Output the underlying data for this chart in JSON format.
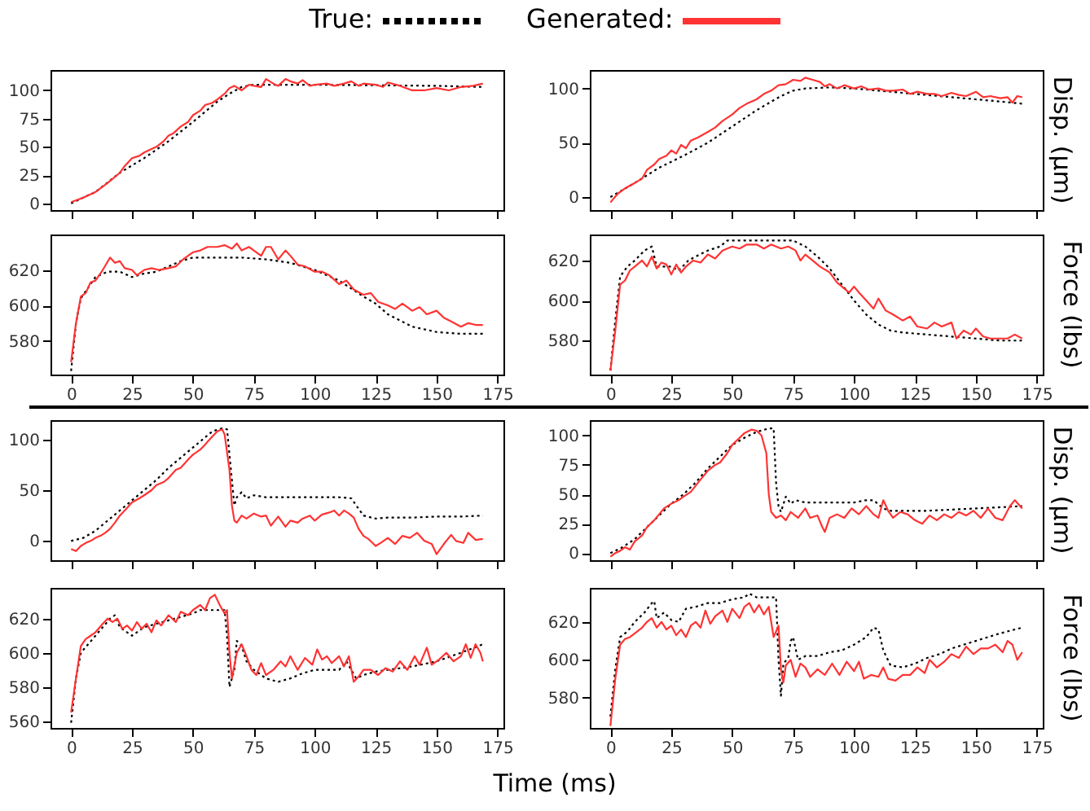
{
  "chart_data": [
    {
      "type": "line",
      "legend": "top",
      "tick_labels": "y",
      "xlim": [
        -8.45,
        177.45
      ],
      "xticks": [
        0,
        25,
        50,
        75,
        100,
        125,
        150,
        175
      ],
      "ylim": [
        -6,
        118
      ],
      "yticks": [
        0,
        25,
        50,
        75,
        100
      ],
      "series": [
        {
          "name": "True:",
          "color": "#000000",
          "line_style": "dotted",
          "x": [
            0,
            10,
            20,
            30,
            40,
            50,
            60,
            65,
            70,
            75,
            100,
            150,
            169
          ],
          "values": [
            0,
            10,
            27,
            40,
            55,
            72,
            90,
            97,
            103,
            105,
            105,
            104,
            103
          ]
        },
        {
          "name": "Generated:",
          "color": "#ff3333",
          "line_style": "solid",
          "x": [
            0,
            5,
            10,
            15,
            20,
            22,
            25,
            28,
            30,
            33,
            35,
            38,
            40,
            42,
            45,
            48,
            50,
            53,
            55,
            58,
            60,
            63,
            65,
            67,
            70,
            73,
            75,
            78,
            80,
            83,
            85,
            88,
            90,
            93,
            95,
            98,
            100,
            105,
            108,
            112,
            115,
            118,
            120,
            125,
            128,
            130,
            135,
            140,
            145,
            150,
            155,
            160,
            165,
            169
          ],
          "values": [
            1,
            5,
            10,
            18,
            27,
            33,
            40,
            42,
            45,
            48,
            50,
            55,
            60,
            62,
            68,
            72,
            78,
            82,
            87,
            89,
            92,
            97,
            102,
            104,
            100,
            105,
            104,
            103,
            110,
            106,
            104,
            110,
            108,
            106,
            109,
            104,
            105,
            106,
            104,
            106,
            108,
            104,
            106,
            105,
            103,
            107,
            104,
            100,
            100,
            102,
            100,
            103,
            104,
            106
          ]
        }
      ]
    },
    {
      "type": "line",
      "tick_labels": "y",
      "ylabel": "Disp. (μm)",
      "xlim": [
        -8.45,
        177.45
      ],
      "xticks": [
        0,
        25,
        50,
        75,
        100,
        125,
        150,
        175
      ],
      "ylim": [
        -12,
        117
      ],
      "yticks": [
        0,
        50,
        100
      ],
      "series": [
        {
          "color": "#000000",
          "line_style": "dotted",
          "x": [
            0,
            10,
            20,
            30,
            40,
            50,
            60,
            70,
            75,
            80,
            90,
            100,
            110,
            120,
            130,
            140,
            150,
            160,
            169
          ],
          "values": [
            0,
            13,
            27,
            38,
            50,
            65,
            80,
            93,
            98,
            100,
            101,
            100,
            98,
            96,
            94,
            92,
            90,
            88,
            86
          ]
        },
        {
          "color": "#ff3333",
          "line_style": "solid",
          "x": [
            0,
            3,
            6,
            10,
            13,
            15,
            18,
            20,
            23,
            25,
            27,
            29,
            31,
            33,
            36,
            40,
            43,
            46,
            50,
            53,
            56,
            60,
            63,
            66,
            69,
            72,
            75,
            78,
            80,
            83,
            86,
            88,
            90,
            93,
            96,
            100,
            103,
            106,
            110,
            113,
            116,
            120,
            123,
            126,
            130,
            133,
            136,
            140,
            143,
            146,
            150,
            153,
            156,
            160,
            163,
            165,
            167,
            169
          ],
          "values": [
            -5,
            3,
            8,
            13,
            17,
            25,
            30,
            35,
            38,
            43,
            40,
            48,
            45,
            52,
            55,
            60,
            64,
            70,
            76,
            82,
            86,
            90,
            95,
            98,
            103,
            104,
            108,
            107,
            110,
            108,
            106,
            102,
            104,
            100,
            103,
            100,
            102,
            99,
            100,
            98,
            98,
            99,
            95,
            97,
            95,
            95,
            93,
            96,
            94,
            93,
            97,
            92,
            93,
            91,
            92,
            87,
            93,
            92
          ]
        }
      ]
    },
    {
      "type": "line",
      "xlim": [
        -8.45,
        177.45
      ],
      "xticks": [
        0,
        25,
        50,
        75,
        100,
        125,
        150,
        175
      ],
      "ylim": [
        561,
        640
      ],
      "yticks": [
        580,
        600,
        620
      ],
      "series": [
        {
          "color": "#000000",
          "line_style": "dotted",
          "x": [
            0,
            2,
            4,
            7,
            10,
            15,
            20,
            25,
            30,
            35,
            40,
            45,
            50,
            60,
            70,
            80,
            90,
            100,
            110,
            120,
            125,
            130,
            140,
            150,
            160,
            169
          ],
          "values": [
            563,
            590,
            604,
            610,
            616,
            619,
            619,
            616,
            618,
            619,
            622,
            625,
            627,
            627,
            627,
            626,
            624,
            620,
            614,
            605,
            601,
            595,
            588,
            585,
            584,
            584
          ]
        },
        {
          "color": "#ff3333",
          "line_style": "solid",
          "x": [
            0,
            2,
            4,
            6,
            8,
            10,
            13,
            16,
            18,
            20,
            22,
            25,
            27,
            30,
            33,
            36,
            40,
            43,
            46,
            50,
            53,
            56,
            60,
            63,
            66,
            68,
            70,
            73,
            75,
            78,
            80,
            82,
            85,
            88,
            90,
            93,
            96,
            100,
            103,
            106,
            110,
            113,
            116,
            120,
            123,
            126,
            130,
            133,
            136,
            140,
            143,
            146,
            150,
            153,
            156,
            160,
            163,
            166,
            169
          ],
          "values": [
            568,
            590,
            605,
            607,
            613,
            614,
            620,
            627,
            624,
            625,
            621,
            620,
            617,
            620,
            621,
            620,
            621,
            622,
            626,
            630,
            631,
            633,
            633,
            634,
            632,
            635,
            631,
            633,
            631,
            628,
            633,
            633,
            626,
            631,
            628,
            623,
            622,
            619,
            619,
            617,
            612,
            614,
            609,
            606,
            607,
            602,
            600,
            598,
            601,
            597,
            599,
            595,
            597,
            593,
            591,
            588,
            590,
            589,
            589
          ]
        }
      ]
    },
    {
      "type": "line",
      "ylabel": "Force (lbs)",
      "xlim": [
        -8.45,
        177.45
      ],
      "xticks": [
        0,
        25,
        50,
        75,
        100,
        125,
        150,
        175
      ],
      "ylim": [
        563,
        633
      ],
      "yticks": [
        580,
        600,
        620
      ],
      "series": [
        {
          "color": "#000000",
          "line_style": "dotted",
          "x": [
            0,
            2,
            4,
            7,
            10,
            14,
            17,
            19,
            22,
            25,
            28,
            32,
            35,
            40,
            45,
            48,
            60,
            75,
            80,
            85,
            90,
            95,
            100,
            105,
            110,
            115,
            120,
            130,
            140,
            150,
            160,
            169
          ],
          "values": [
            565,
            590,
            612,
            617,
            620,
            625,
            627,
            617,
            617,
            617,
            615,
            620,
            622,
            625,
            627,
            630,
            630,
            630,
            627,
            622,
            616,
            608,
            600,
            593,
            588,
            585,
            584,
            583,
            582,
            581,
            580,
            580
          ]
        },
        {
          "color": "#ff3333",
          "line_style": "solid",
          "x": [
            0,
            2,
            4,
            6,
            8,
            11,
            13,
            15,
            17,
            19,
            21,
            23,
            25,
            27,
            29,
            31,
            34,
            37,
            40,
            43,
            46,
            50,
            53,
            56,
            60,
            63,
            66,
            70,
            73,
            76,
            78,
            80,
            83,
            86,
            90,
            93,
            96,
            98,
            100,
            102,
            105,
            108,
            110,
            113,
            116,
            120,
            123,
            126,
            130,
            133,
            136,
            140,
            142,
            145,
            148,
            150,
            153,
            156,
            160,
            163,
            166,
            169
          ],
          "values": [
            565,
            585,
            608,
            610,
            615,
            618,
            620,
            617,
            622,
            616,
            619,
            618,
            613,
            618,
            614,
            617,
            620,
            619,
            623,
            621,
            625,
            627,
            626,
            628,
            628,
            626,
            628,
            626,
            627,
            625,
            620,
            623,
            620,
            617,
            614,
            609,
            606,
            604,
            607,
            604,
            600,
            596,
            601,
            595,
            593,
            590,
            592,
            587,
            586,
            589,
            587,
            589,
            581,
            585,
            583,
            586,
            582,
            581,
            581,
            581,
            583,
            581
          ]
        }
      ]
    },
    {
      "type": "line",
      "tick_labels": "y",
      "xlim": [
        -8.45,
        177.45
      ],
      "xticks": [
        0,
        25,
        50,
        75,
        100,
        125,
        150,
        175
      ],
      "ylim": [
        -19,
        119
      ],
      "yticks": [
        0,
        50,
        100
      ],
      "series": [
        {
          "color": "#000000",
          "line_style": "dotted",
          "x": [
            0,
            5,
            10,
            15,
            20,
            25,
            30,
            35,
            40,
            45,
            50,
            55,
            58,
            62,
            64,
            66,
            67,
            68,
            70,
            72,
            75,
            80,
            90,
            100,
            110,
            115,
            117,
            120,
            125,
            130,
            140,
            150,
            160,
            169
          ],
          "values": [
            0,
            3,
            10,
            20,
            30,
            40,
            50,
            60,
            72,
            82,
            92,
            102,
            108,
            111,
            110,
            60,
            35,
            43,
            48,
            42,
            45,
            43,
            43,
            43,
            43,
            42,
            35,
            25,
            22,
            23,
            23,
            24,
            24,
            25
          ]
        },
        {
          "color": "#ff3333",
          "line_style": "solid",
          "x": [
            0,
            2,
            4,
            6,
            8,
            10,
            12,
            14,
            16,
            18,
            20,
            22,
            25,
            28,
            30,
            33,
            35,
            38,
            40,
            43,
            45,
            48,
            50,
            53,
            55,
            58,
            60,
            62,
            63,
            65,
            66,
            67,
            68,
            70,
            72,
            75,
            78,
            80,
            82,
            85,
            88,
            90,
            93,
            95,
            98,
            100,
            103,
            106,
            108,
            110,
            112,
            114,
            116,
            118,
            120,
            122,
            125,
            127,
            130,
            133,
            136,
            139,
            142,
            145,
            148,
            150,
            153,
            156,
            158,
            161,
            163,
            166,
            169
          ],
          "values": [
            -8,
            -10,
            -5,
            -2,
            0,
            3,
            5,
            8,
            12,
            18,
            25,
            30,
            38,
            42,
            45,
            50,
            55,
            58,
            62,
            70,
            72,
            80,
            85,
            90,
            95,
            103,
            108,
            110,
            105,
            70,
            35,
            20,
            18,
            25,
            22,
            27,
            24,
            25,
            15,
            24,
            14,
            20,
            18,
            22,
            25,
            20,
            26,
            28,
            30,
            25,
            30,
            27,
            23,
            12,
            5,
            2,
            -5,
            -2,
            3,
            -3,
            5,
            3,
            8,
            0,
            -3,
            -13,
            -3,
            6,
            0,
            -2,
            8,
            1,
            2
          ]
        }
      ]
    },
    {
      "type": "line",
      "tick_labels": "y",
      "ylabel": "Disp. (μm)",
      "xlim": [
        -8.45,
        177.45
      ],
      "xticks": [
        0,
        25,
        50,
        75,
        100,
        125,
        150,
        175
      ],
      "ylim": [
        -6,
        113
      ],
      "yticks": [
        0,
        25,
        50,
        75,
        100
      ],
      "series": [
        {
          "color": "#000000",
          "line_style": "dotted",
          "x": [
            0,
            5,
            10,
            15,
            20,
            25,
            30,
            35,
            40,
            45,
            50,
            55,
            60,
            65,
            67,
            68,
            69,
            70,
            72,
            74,
            76,
            80,
            90,
            100,
            105,
            108,
            112,
            115,
            120,
            130,
            140,
            150,
            160,
            169
          ],
          "values": [
            0,
            5,
            12,
            22,
            32,
            42,
            50,
            60,
            72,
            82,
            92,
            98,
            103,
            106,
            106,
            60,
            40,
            35,
            48,
            42,
            45,
            43,
            43,
            43,
            45,
            45,
            38,
            36,
            36,
            36,
            37,
            38,
            39,
            40
          ]
        },
        {
          "color": "#ff3333",
          "line_style": "solid",
          "x": [
            0,
            2,
            4,
            6,
            8,
            10,
            13,
            15,
            18,
            20,
            22,
            25,
            28,
            30,
            33,
            36,
            38,
            40,
            43,
            45,
            48,
            50,
            53,
            55,
            58,
            60,
            62,
            64,
            65,
            66,
            68,
            70,
            72,
            74,
            77,
            80,
            82,
            85,
            87,
            88,
            90,
            93,
            96,
            99,
            102,
            105,
            108,
            110,
            112,
            114,
            116,
            119,
            122,
            125,
            128,
            131,
            134,
            137,
            140,
            143,
            146,
            149,
            152,
            155,
            158,
            161,
            164,
            166,
            169
          ],
          "values": [
            -3,
            0,
            2,
            5,
            3,
            10,
            15,
            22,
            28,
            33,
            38,
            42,
            45,
            48,
            52,
            60,
            65,
            70,
            75,
            77,
            85,
            92,
            98,
            102,
            105,
            104,
            100,
            85,
            50,
            35,
            30,
            32,
            28,
            35,
            30,
            38,
            30,
            32,
            22,
            18,
            30,
            33,
            30,
            38,
            33,
            40,
            33,
            30,
            45,
            36,
            30,
            35,
            33,
            28,
            25,
            32,
            28,
            33,
            30,
            35,
            32,
            36,
            30,
            38,
            30,
            28,
            40,
            45,
            38
          ]
        }
      ]
    },
    {
      "type": "line",
      "xlabel": "Time (ms)",
      "xlim": [
        -8.45,
        177.45
      ],
      "xticks": [
        0,
        25,
        50,
        75,
        100,
        125,
        150,
        175
      ],
      "ylim": [
        556,
        638
      ],
      "yticks": [
        560,
        580,
        600,
        620
      ],
      "series": [
        {
          "color": "#000000",
          "line_style": "dotted",
          "x": [
            0,
            2,
            4,
            7,
            10,
            13,
            16,
            18,
            20,
            23,
            25,
            28,
            30,
            35,
            40,
            45,
            50,
            53,
            60,
            63,
            64,
            65,
            67,
            68,
            70,
            72,
            75,
            80,
            85,
            90,
            95,
            100,
            110,
            113,
            115,
            117,
            120,
            125,
            130,
            140,
            150,
            160,
            169
          ],
          "values": [
            559,
            585,
            600,
            605,
            610,
            615,
            620,
            622,
            615,
            612,
            610,
            613,
            615,
            617,
            619,
            621,
            623,
            625,
            625,
            625,
            610,
            580,
            590,
            607,
            604,
            595,
            590,
            585,
            583,
            585,
            588,
            590,
            590,
            595,
            590,
            585,
            587,
            589,
            590,
            592,
            595,
            600,
            605
          ]
        },
        {
          "color": "#ff3333",
          "line_style": "solid",
          "x": [
            0,
            2,
            4,
            6,
            8,
            10,
            13,
            15,
            17,
            19,
            21,
            23,
            25,
            27,
            29,
            31,
            33,
            35,
            37,
            40,
            43,
            45,
            48,
            50,
            53,
            55,
            57,
            59,
            61,
            63,
            64,
            65,
            66,
            68,
            70,
            72,
            74,
            76,
            78,
            80,
            83,
            86,
            88,
            90,
            93,
            96,
            99,
            101,
            103,
            105,
            107,
            110,
            112,
            114,
            116,
            118,
            120,
            123,
            126,
            129,
            132,
            135,
            138,
            141,
            143,
            146,
            148,
            151,
            154,
            157,
            160,
            162,
            164,
            166,
            168,
            169
          ],
          "values": [
            565,
            585,
            604,
            608,
            610,
            612,
            617,
            620,
            618,
            620,
            614,
            616,
            613,
            618,
            614,
            617,
            612,
            619,
            616,
            622,
            618,
            624,
            622,
            625,
            628,
            625,
            632,
            634,
            628,
            623,
            625,
            600,
            585,
            600,
            605,
            598,
            590,
            587,
            594,
            587,
            590,
            595,
            592,
            598,
            590,
            597,
            593,
            602,
            596,
            598,
            594,
            598,
            592,
            598,
            583,
            586,
            590,
            590,
            587,
            591,
            589,
            595,
            590,
            598,
            593,
            603,
            593,
            596,
            600,
            595,
            598,
            605,
            597,
            605,
            600,
            595
          ]
        }
      ]
    },
    {
      "type": "line",
      "ylabel": "Force (lbs)",
      "xlim": [
        -8.45,
        177.45
      ],
      "xticks": [
        0,
        25,
        50,
        75,
        100,
        125,
        150,
        175
      ],
      "ylim": [
        564,
        638
      ],
      "yticks": [
        580,
        600,
        620
      ],
      "series": [
        {
          "color": "#000000",
          "line_style": "dotted",
          "x": [
            0,
            2,
            4,
            7,
            10,
            14,
            17,
            18,
            19,
            22,
            25,
            28,
            31,
            35,
            40,
            45,
            50,
            55,
            57,
            60,
            68,
            69,
            70,
            71,
            73,
            74,
            75,
            77,
            80,
            85,
            90,
            95,
            100,
            105,
            108,
            110,
            112,
            115,
            120,
            125,
            130,
            135,
            140,
            150,
            160,
            169
          ],
          "values": [
            570,
            595,
            612,
            615,
            620,
            625,
            630,
            631,
            622,
            625,
            621,
            620,
            627,
            628,
            630,
            630,
            632,
            633,
            635,
            633,
            633,
            600,
            581,
            598,
            601,
            610,
            612,
            600,
            602,
            602,
            604,
            605,
            608,
            612,
            617,
            616,
            605,
            597,
            596,
            598,
            601,
            603,
            606,
            610,
            614,
            617
          ]
        },
        {
          "color": "#ff3333",
          "line_style": "solid",
          "x": [
            0,
            2,
            4,
            6,
            8,
            10,
            13,
            15,
            17,
            19,
            21,
            23,
            25,
            27,
            29,
            31,
            33,
            35,
            37,
            39,
            41,
            43,
            46,
            48,
            50,
            53,
            55,
            57,
            59,
            61,
            63,
            65,
            67,
            69,
            70,
            71,
            72,
            74,
            76,
            78,
            80,
            82,
            85,
            88,
            91,
            94,
            97,
            100,
            102,
            104,
            107,
            110,
            112,
            114,
            117,
            120,
            123,
            126,
            129,
            131,
            134,
            137,
            140,
            143,
            146,
            149,
            152,
            155,
            158,
            161,
            163,
            165,
            167,
            169
          ],
          "values": [
            565,
            590,
            608,
            611,
            612,
            614,
            617,
            620,
            622,
            617,
            620,
            616,
            618,
            613,
            616,
            612,
            618,
            620,
            617,
            626,
            619,
            623,
            626,
            620,
            627,
            622,
            628,
            630,
            625,
            629,
            624,
            628,
            612,
            618,
            595,
            588,
            597,
            600,
            591,
            598,
            596,
            591,
            595,
            592,
            598,
            592,
            599,
            594,
            599,
            590,
            592,
            591,
            596,
            590,
            589,
            592,
            592,
            596,
            593,
            600,
            596,
            599,
            603,
            601,
            607,
            603,
            606,
            606,
            608,
            604,
            610,
            608,
            600,
            604
          ]
        }
      ]
    }
  ]
}
